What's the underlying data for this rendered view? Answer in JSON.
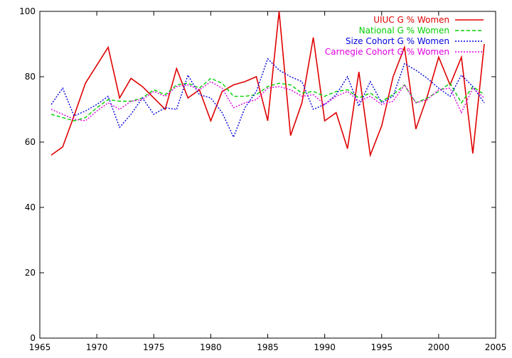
{
  "chart_data": {
    "type": "line",
    "title": "",
    "xlabel": "",
    "ylabel": "",
    "xlim": [
      1965,
      2005
    ],
    "ylim": [
      0,
      100
    ],
    "xticks": [
      1965,
      1970,
      1975,
      1980,
      1985,
      1990,
      1995,
      2000,
      2005
    ],
    "yticks": [
      0,
      20,
      40,
      60,
      80,
      100
    ],
    "grid": false,
    "legend_position": "top-right",
    "x": [
      1966,
      1967,
      1968,
      1969,
      1970,
      1971,
      1972,
      1973,
      1974,
      1975,
      1976,
      1977,
      1978,
      1979,
      1980,
      1981,
      1982,
      1983,
      1984,
      1985,
      1986,
      1987,
      1988,
      1989,
      1990,
      1991,
      1992,
      1993,
      1994,
      1995,
      1996,
      1997,
      1998,
      1999,
      2000,
      2001,
      2002,
      2003,
      2004
    ],
    "series": [
      {
        "name": "UIUC G % Women",
        "color": "#e00000",
        "dash": "solid",
        "values": [
          56,
          58.5,
          68,
          78,
          83.5,
          89,
          73.5,
          79.5,
          77,
          73.5,
          70,
          82.5,
          73.5,
          76,
          66.5,
          75.5,
          77.5,
          78.5,
          80,
          66.5,
          100,
          62,
          72,
          92,
          66.5,
          69,
          58,
          81.5,
          56,
          65,
          80,
          89,
          64,
          74,
          86,
          77.5,
          86,
          56.5,
          90
        ]
      },
      {
        "name": "National G % Women",
        "color": "#00d000",
        "dash": "dashed",
        "values": [
          68.5,
          67.5,
          66.5,
          67.5,
          70.5,
          73,
          72.5,
          72.5,
          73.5,
          76,
          74.5,
          77.5,
          78,
          76.5,
          79.5,
          78,
          74,
          74,
          74.5,
          77,
          78,
          77.5,
          75,
          75.5,
          74,
          75.5,
          76,
          73.5,
          75,
          72.5,
          74.5,
          77.5,
          72,
          73.5,
          75.5,
          78,
          72,
          77,
          74.5
        ]
      },
      {
        "name": "Size Cohort G % Women",
        "color": "#0000e0",
        "dash": "dotted",
        "values": [
          71.5,
          76.5,
          68,
          69.5,
          71.5,
          74,
          64.5,
          68.5,
          73.5,
          68.5,
          70.5,
          70,
          80.5,
          74.5,
          73.5,
          69,
          61.5,
          70.5,
          75.5,
          85.5,
          82,
          80,
          78.5,
          70,
          71.5,
          74.5,
          80,
          71,
          78.5,
          72,
          74,
          84,
          82,
          79.5,
          76.5,
          74,
          80.5,
          77,
          72
        ]
      },
      {
        "name": "Carnegie Cohort G % Women",
        "color": "#e000e0",
        "dash": "dotted",
        "values": [
          70,
          68.5,
          67,
          66.5,
          69.5,
          72,
          70,
          72.5,
          73,
          75.5,
          74,
          77,
          77.5,
          76,
          78.5,
          76.5,
          70.5,
          72,
          73,
          76.5,
          77,
          76,
          74,
          74.5,
          71.5,
          74,
          75.5,
          72.5,
          74,
          71.5,
          72.5,
          77.5,
          72,
          73,
          76,
          76.5,
          69,
          76.5,
          73.5
        ]
      }
    ]
  }
}
